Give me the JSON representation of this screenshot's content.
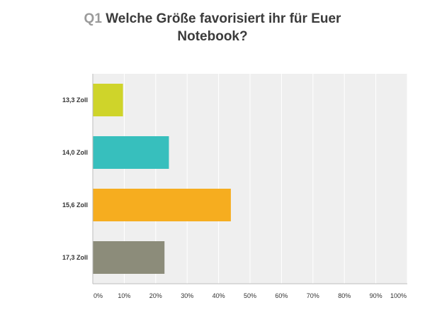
{
  "title": {
    "question_number": "Q1",
    "text": "Welche Größe favorisiert ihr für Euer Notebook?"
  },
  "chart_data": {
    "type": "bar",
    "orientation": "horizontal",
    "categories": [
      "13,3 Zoll",
      "14,0 Zoll",
      "15,6 Zoll",
      "17,3 Zoll"
    ],
    "values": [
      9.6,
      24.2,
      43.9,
      22.8
    ],
    "colors": [
      "#cfd42a",
      "#37bfbd",
      "#f6ad1f",
      "#8c8c7a"
    ],
    "xlim": [
      0,
      100
    ],
    "xticks": [
      0,
      10,
      20,
      30,
      40,
      50,
      60,
      70,
      80,
      90,
      100
    ],
    "xtick_labels": [
      "0%",
      "10%",
      "20%",
      "30%",
      "40%",
      "50%",
      "60%",
      "70%",
      "80%",
      "90%",
      "100%"
    ],
    "grid": true,
    "background": "#efefef"
  }
}
